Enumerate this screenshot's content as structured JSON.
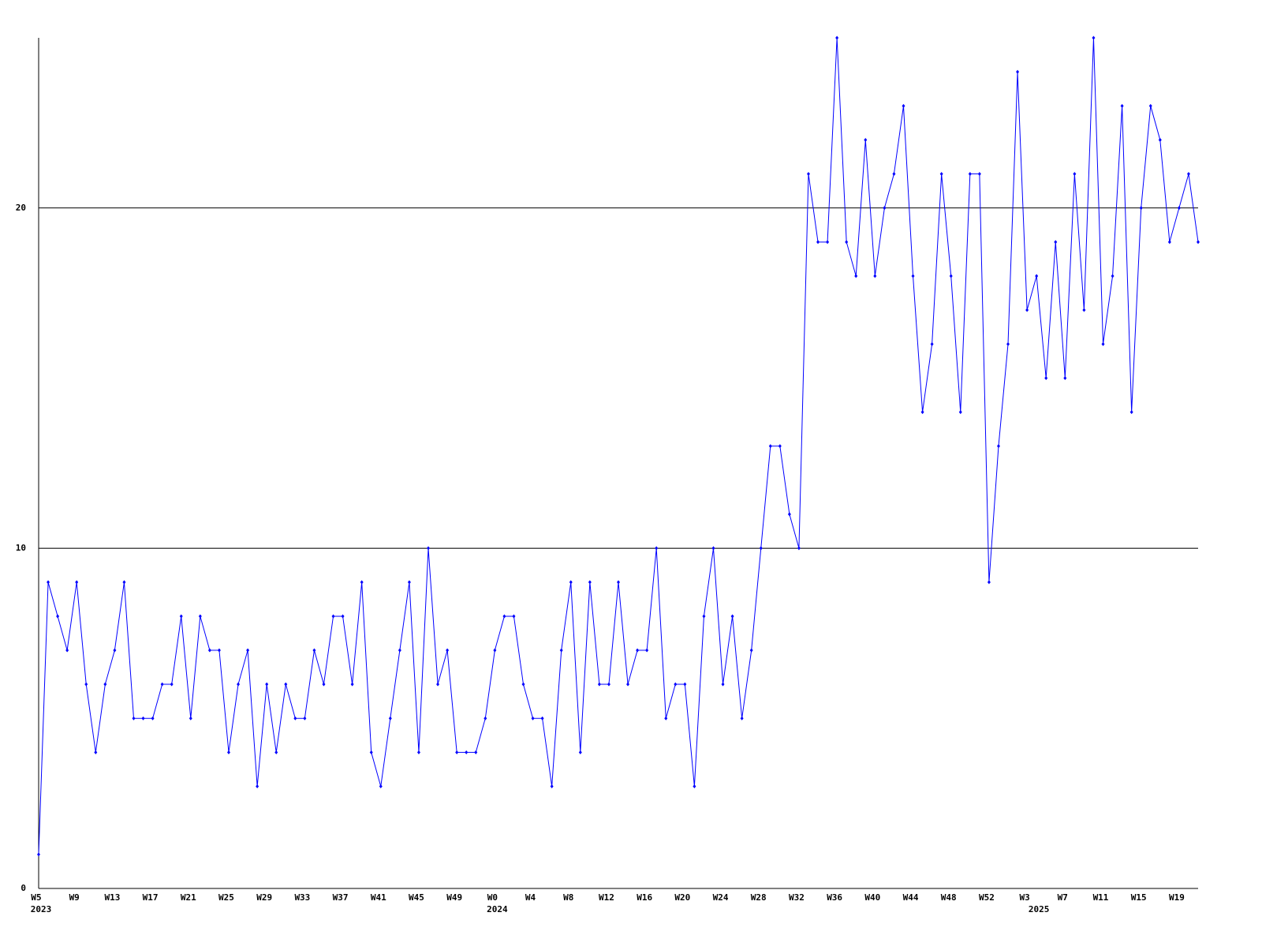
{
  "chart_data": {
    "type": "line",
    "color": "#0000ff",
    "grid": true,
    "ylim": [
      0,
      25
    ],
    "yticks": [
      0,
      10,
      20
    ],
    "categories": [
      "W5",
      null,
      null,
      null,
      "W9",
      null,
      null,
      null,
      "W13",
      null,
      null,
      null,
      "W17",
      null,
      null,
      null,
      "W21",
      null,
      null,
      null,
      "W25",
      null,
      null,
      null,
      "W29",
      null,
      null,
      null,
      "W33",
      null,
      null,
      null,
      "W37",
      null,
      null,
      null,
      "W41",
      null,
      null,
      null,
      "W45",
      null,
      null,
      null,
      "W49",
      null,
      null,
      null,
      "W0",
      null,
      null,
      null,
      "W4",
      null,
      null,
      null,
      "W8",
      null,
      null,
      null,
      "W12",
      null,
      null,
      null,
      "W16",
      null,
      null,
      null,
      "W20",
      null,
      null,
      null,
      "W24",
      null,
      null,
      null,
      "W28",
      null,
      null,
      null,
      "W32",
      null,
      null,
      null,
      "W36",
      null,
      null,
      null,
      "W40",
      null,
      null,
      null,
      "W44",
      null,
      null,
      null,
      "W48",
      null,
      null,
      null,
      "W52",
      null,
      null,
      null,
      "W3",
      null,
      null,
      null,
      "W7",
      null,
      null,
      null,
      "W11",
      null,
      null,
      null,
      "W15",
      null,
      null,
      null,
      "W19",
      null,
      null
    ],
    "years": [
      "2023",
      null,
      null,
      null,
      null,
      null,
      null,
      null,
      null,
      null,
      null,
      null,
      null,
      null,
      null,
      null,
      null,
      null,
      null,
      null,
      null,
      null,
      null,
      null,
      null,
      null,
      null,
      null,
      null,
      null,
      null,
      null,
      null,
      null,
      null,
      null,
      null,
      null,
      null,
      null,
      null,
      null,
      null,
      null,
      null,
      null,
      null,
      null,
      "2024",
      null,
      null,
      null,
      null,
      null,
      null,
      null,
      null,
      null,
      null,
      null,
      null,
      null,
      null,
      null,
      null,
      null,
      null,
      null,
      null,
      null,
      null,
      null,
      null,
      null,
      null,
      null,
      null,
      null,
      null,
      null,
      null,
      null,
      null,
      null,
      null,
      null,
      null,
      null,
      null,
      null,
      null,
      null,
      null,
      null,
      null,
      null,
      null,
      null,
      null,
      null,
      null,
      null,
      null,
      null,
      null,
      "2025",
      null,
      null,
      null,
      null,
      null,
      null,
      null,
      null,
      null,
      null,
      null,
      null,
      null,
      null,
      null,
      null,
      null,
      null,
      null,
      null
    ],
    "values": [
      1,
      9,
      8,
      7,
      9,
      6,
      4,
      6,
      7,
      9,
      5,
      5,
      5,
      6,
      6,
      8,
      5,
      8,
      7,
      7,
      4,
      6,
      7,
      3,
      6,
      4,
      6,
      5,
      5,
      7,
      6,
      8,
      8,
      6,
      9,
      4,
      3,
      5,
      7,
      9,
      4,
      10,
      6,
      7,
      4,
      4,
      4,
      5,
      7,
      8,
      8,
      6,
      5,
      5,
      3,
      7,
      9,
      4,
      9,
      6,
      6,
      9,
      6,
      7,
      7,
      10,
      5,
      6,
      6,
      3,
      8,
      10,
      6,
      8,
      5,
      7,
      10,
      13,
      13,
      11,
      10,
      21,
      19,
      19,
      25,
      19,
      18,
      22,
      18,
      20,
      21,
      23,
      18,
      14,
      16,
      21,
      18,
      14,
      21,
      21,
      9,
      13,
      16,
      24,
      17,
      18,
      15,
      19,
      15,
      21,
      17,
      25,
      16,
      18,
      23,
      14,
      20,
      23,
      22,
      19,
      20,
      21,
      19
    ]
  }
}
